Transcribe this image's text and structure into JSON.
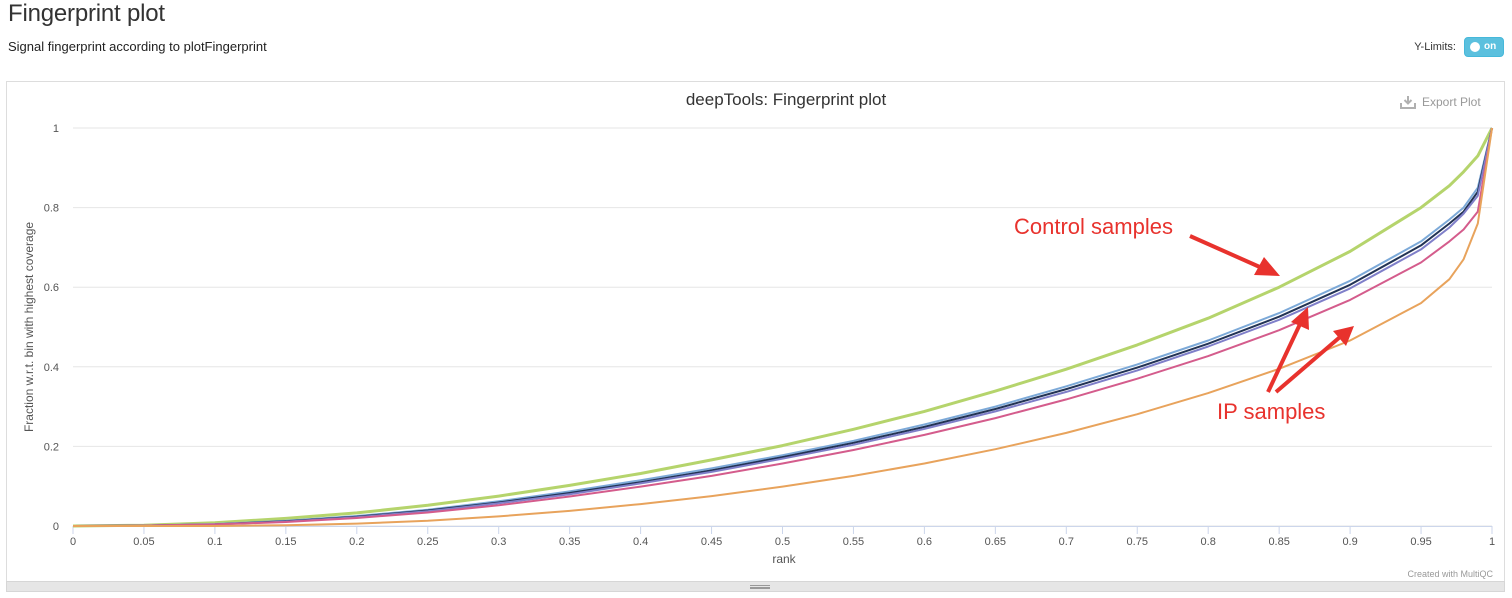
{
  "page": {
    "title": "Fingerprint plot",
    "subtitle": "Signal fingerprint according to plotFingerprint"
  },
  "controls": {
    "ylimits_label": "Y-Limits:",
    "toggle_text": "on",
    "export_label": "Export Plot",
    "export_icon": "download-icon"
  },
  "credit": "Created with MultiQC",
  "colors": {
    "toggle_bg": "#5bc0de",
    "annotation": "#e8322d"
  },
  "annotations": {
    "control": "Control samples",
    "ip": "IP samples"
  },
  "chart_data": {
    "type": "line",
    "title": "deepTools: Fingerprint plot",
    "xlabel": "rank",
    "ylabel": "Fraction w.r.t. bin with highest coverage",
    "xlim": [
      0,
      1
    ],
    "ylim": [
      0,
      1
    ],
    "xticks": [
      "0",
      "0.05",
      "0.1",
      "0.15",
      "0.2",
      "0.25",
      "0.3",
      "0.35",
      "0.4",
      "0.45",
      "0.5",
      "0.55",
      "0.6",
      "0.65",
      "0.7",
      "0.75",
      "0.8",
      "0.85",
      "0.9",
      "0.95",
      "1"
    ],
    "yticks": [
      "0",
      "0.2",
      "0.4",
      "0.6",
      "0.8",
      "1"
    ],
    "grid": true,
    "x": [
      0,
      0.05,
      0.1,
      0.15,
      0.2,
      0.25,
      0.3,
      0.35,
      0.4,
      0.45,
      0.5,
      0.55,
      0.6,
      0.65,
      0.7,
      0.75,
      0.8,
      0.85,
      0.9,
      0.95,
      0.97,
      0.98,
      0.99,
      1.0
    ],
    "series": [
      {
        "color": "#b5d46c",
        "width": 3,
        "values": [
          0,
          0.002,
          0.008,
          0.019,
          0.033,
          0.052,
          0.075,
          0.102,
          0.132,
          0.166,
          0.202,
          0.243,
          0.288,
          0.339,
          0.394,
          0.455,
          0.522,
          0.6,
          0.69,
          0.8,
          0.855,
          0.89,
          0.93,
          1.0
        ]
      },
      {
        "color": "#7ca9d8",
        "width": 2,
        "values": [
          0,
          0.001,
          0.005,
          0.013,
          0.025,
          0.041,
          0.062,
          0.087,
          0.115,
          0.145,
          0.178,
          0.214,
          0.255,
          0.3,
          0.351,
          0.406,
          0.466,
          0.535,
          0.616,
          0.715,
          0.77,
          0.8,
          0.85,
          1.0
        ]
      },
      {
        "color": "#223355",
        "width": 2,
        "values": [
          0,
          0.001,
          0.004,
          0.012,
          0.023,
          0.039,
          0.059,
          0.083,
          0.11,
          0.14,
          0.173,
          0.209,
          0.249,
          0.294,
          0.344,
          0.398,
          0.458,
          0.526,
          0.606,
          0.705,
          0.76,
          0.79,
          0.84,
          1.0
        ]
      },
      {
        "color": "#7f7fc9",
        "width": 2,
        "values": [
          0,
          0.001,
          0.004,
          0.011,
          0.022,
          0.037,
          0.057,
          0.08,
          0.107,
          0.136,
          0.169,
          0.204,
          0.244,
          0.288,
          0.337,
          0.391,
          0.451,
          0.518,
          0.597,
          0.695,
          0.75,
          0.785,
          0.83,
          1.0
        ]
      },
      {
        "color": "#d45c8c",
        "width": 2,
        "values": [
          0,
          0.001,
          0.004,
          0.01,
          0.02,
          0.034,
          0.052,
          0.074,
          0.099,
          0.126,
          0.157,
          0.191,
          0.229,
          0.271,
          0.318,
          0.37,
          0.427,
          0.492,
          0.568,
          0.662,
          0.715,
          0.745,
          0.79,
          1.0
        ]
      },
      {
        "color": "#e8a35c",
        "width": 2,
        "values": [
          0,
          0.0,
          0.0,
          0.002,
          0.006,
          0.013,
          0.024,
          0.038,
          0.055,
          0.075,
          0.099,
          0.126,
          0.157,
          0.193,
          0.234,
          0.281,
          0.334,
          0.395,
          0.466,
          0.56,
          0.62,
          0.67,
          0.76,
          1.0
        ]
      }
    ]
  }
}
